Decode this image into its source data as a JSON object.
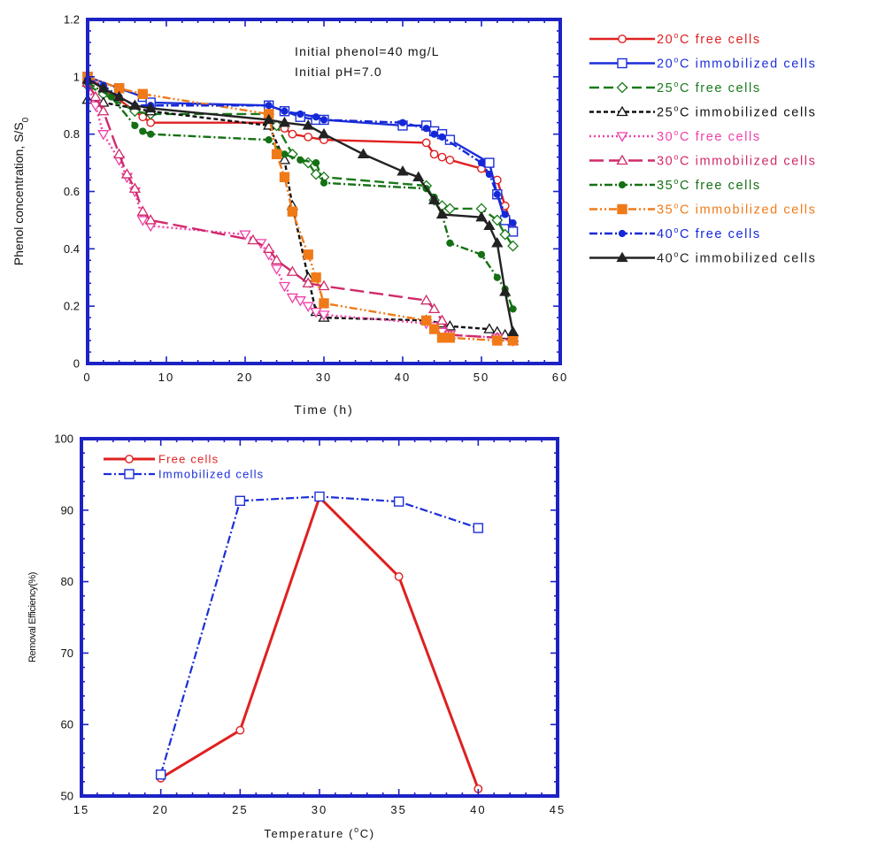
{
  "chart_data": [
    {
      "type": "line",
      "annotation_lines": [
        "Initial phenol=40 mg/L",
        "Initial pH=7.0"
      ],
      "xlabel": "Time (h)",
      "ylabel": "Phenol concentration, S/S",
      "ylabel_sub": "0",
      "xlim": [
        0,
        60
      ],
      "ylim": [
        0,
        1.2
      ],
      "xticks": [
        "0",
        "10",
        "20",
        "30",
        "40",
        "50",
        "60"
      ],
      "yticks": [
        "0",
        "0.2",
        "0.4",
        "0.6",
        "0.8",
        "1",
        "1.2"
      ],
      "legend_position": "right",
      "series": [
        {
          "name": "20°C free cells",
          "temp": "20",
          "label": "C  free cells",
          "color": "#e02020",
          "marker": "circle",
          "dash": "solid",
          "points": [
            [
              0,
              1.0
            ],
            [
              2,
              0.96
            ],
            [
              7,
              0.86
            ],
            [
              8,
              0.84
            ],
            [
              23,
              0.84
            ],
            [
              25,
              0.82
            ],
            [
              26,
              0.8
            ],
            [
              28,
              0.79
            ],
            [
              30,
              0.78
            ],
            [
              43,
              0.77
            ],
            [
              44,
              0.73
            ],
            [
              45,
              0.72
            ],
            [
              46,
              0.71
            ],
            [
              50,
              0.68
            ],
            [
              52,
              0.64
            ],
            [
              53,
              0.55
            ],
            [
              54,
              0.47
            ]
          ]
        },
        {
          "name": "20°C immobilized cells",
          "temp": "20",
          "label": "C  immobilized cells",
          "color": "#1c2fd8",
          "marker": "square",
          "dash": "solid",
          "points": [
            [
              0,
              1.0
            ],
            [
              4,
              0.96
            ],
            [
              7,
              0.93
            ],
            [
              8,
              0.91
            ],
            [
              23,
              0.9
            ],
            [
              25,
              0.88
            ],
            [
              27,
              0.86
            ],
            [
              29,
              0.85
            ],
            [
              30,
              0.85
            ],
            [
              40,
              0.83
            ],
            [
              43,
              0.83
            ],
            [
              44,
              0.81
            ],
            [
              45,
              0.8
            ],
            [
              46,
              0.78
            ],
            [
              51,
              0.7
            ],
            [
              52,
              0.59
            ],
            [
              53,
              0.5
            ],
            [
              54,
              0.46
            ]
          ]
        },
        {
          "name": "25°C free cells",
          "temp": "25",
          "label": "C  free cells",
          "color": "#1a7a1a",
          "marker": "diamond",
          "dash": "dash",
          "points": [
            [
              0,
              0.97
            ],
            [
              2,
              0.94
            ],
            [
              6,
              0.88
            ],
            [
              8,
              0.87
            ],
            [
              23,
              0.87
            ],
            [
              24,
              0.83
            ],
            [
              26,
              0.73
            ],
            [
              28,
              0.7
            ],
            [
              29,
              0.66
            ],
            [
              30,
              0.65
            ],
            [
              43,
              0.62
            ],
            [
              44,
              0.57
            ],
            [
              45,
              0.55
            ],
            [
              46,
              0.54
            ],
            [
              50,
              0.54
            ],
            [
              52,
              0.5
            ],
            [
              53,
              0.45
            ],
            [
              54,
              0.41
            ]
          ]
        },
        {
          "name": "25°C immobilized cells",
          "temp": "25",
          "label": "C  immobilized cells",
          "color": "#111111",
          "marker": "triangle",
          "dash": "shortdash",
          "points": [
            [
              0,
              0.92
            ],
            [
              2,
              0.91
            ],
            [
              8,
              0.88
            ],
            [
              23,
              0.83
            ],
            [
              25,
              0.71
            ],
            [
              26,
              0.55
            ],
            [
              28,
              0.3
            ],
            [
              29,
              0.18
            ],
            [
              30,
              0.16
            ],
            [
              43,
              0.15
            ],
            [
              45,
              0.14
            ],
            [
              46,
              0.13
            ],
            [
              51,
              0.12
            ],
            [
              52,
              0.11
            ],
            [
              53,
              0.1
            ],
            [
              54,
              0.09
            ]
          ]
        },
        {
          "name": "30°C free cells",
          "temp": "30",
          "label": "C  free cells",
          "color": "#f040a8",
          "marker": "invtriangle",
          "dash": "dot",
          "points": [
            [
              0,
              0.97
            ],
            [
              1,
              0.9
            ],
            [
              2,
              0.8
            ],
            [
              4,
              0.71
            ],
            [
              5,
              0.65
            ],
            [
              6,
              0.6
            ],
            [
              7,
              0.5
            ],
            [
              8,
              0.48
            ],
            [
              20,
              0.45
            ],
            [
              22,
              0.42
            ],
            [
              23,
              0.38
            ],
            [
              24,
              0.33
            ],
            [
              25,
              0.27
            ],
            [
              26,
              0.23
            ],
            [
              27,
              0.22
            ],
            [
              28,
              0.2
            ],
            [
              29,
              0.18
            ],
            [
              30,
              0.17
            ],
            [
              43,
              0.14
            ],
            [
              44,
              0.13
            ],
            [
              45,
              0.11
            ],
            [
              46,
              0.1
            ],
            [
              52,
              0.09
            ],
            [
              54,
              0.08
            ]
          ]
        },
        {
          "name": "30°C immobilized cells",
          "temp": "30",
          "label": "C  immobilized cells",
          "color": "#d02a6a",
          "marker": "triangle",
          "dash": "longdash",
          "points": [
            [
              0,
              0.98
            ],
            [
              1,
              0.93
            ],
            [
              2,
              0.88
            ],
            [
              4,
              0.73
            ],
            [
              5,
              0.66
            ],
            [
              6,
              0.61
            ],
            [
              7,
              0.53
            ],
            [
              8,
              0.5
            ],
            [
              21,
              0.43
            ],
            [
              23,
              0.4
            ],
            [
              24,
              0.36
            ],
            [
              26,
              0.32
            ],
            [
              28,
              0.28
            ],
            [
              30,
              0.27
            ],
            [
              43,
              0.22
            ],
            [
              44,
              0.19
            ],
            [
              45,
              0.15
            ],
            [
              46,
              0.1
            ],
            [
              52,
              0.09
            ],
            [
              54,
              0.08
            ]
          ]
        },
        {
          "name": "35°C free cells",
          "temp": "35",
          "label": "C  free cells",
          "color": "#157015",
          "marker": "dot",
          "dash": "dashdot",
          "points": [
            [
              0,
              0.98
            ],
            [
              3,
              0.93
            ],
            [
              6,
              0.83
            ],
            [
              7,
              0.81
            ],
            [
              8,
              0.8
            ],
            [
              23,
              0.78
            ],
            [
              25,
              0.73
            ],
            [
              27,
              0.71
            ],
            [
              29,
              0.7
            ],
            [
              30,
              0.63
            ],
            [
              43,
              0.61
            ],
            [
              44,
              0.58
            ],
            [
              45,
              0.52
            ],
            [
              46,
              0.42
            ],
            [
              50,
              0.38
            ],
            [
              52,
              0.3
            ],
            [
              53,
              0.26
            ],
            [
              54,
              0.19
            ]
          ]
        },
        {
          "name": "35°C immobilized cells",
          "temp": "35",
          "label": "C  immobilized cells",
          "color": "#f07a18",
          "marker": "filledsquare",
          "dash": "dashdotdot",
          "points": [
            [
              0,
              1.0
            ],
            [
              4,
              0.96
            ],
            [
              7,
              0.94
            ],
            [
              23,
              0.87
            ],
            [
              24,
              0.73
            ],
            [
              25,
              0.65
            ],
            [
              26,
              0.53
            ],
            [
              28,
              0.38
            ],
            [
              29,
              0.3
            ],
            [
              30,
              0.21
            ],
            [
              43,
              0.15
            ],
            [
              44,
              0.12
            ],
            [
              45,
              0.09
            ],
            [
              46,
              0.09
            ],
            [
              52,
              0.08
            ],
            [
              54,
              0.08
            ]
          ]
        },
        {
          "name": "40°C free cells",
          "temp": "40",
          "label": "C  free cells",
          "color": "#1528d8",
          "marker": "dot",
          "dash": "dashdot",
          "points": [
            [
              0,
              0.99
            ],
            [
              2,
              0.97
            ],
            [
              4,
              0.93
            ],
            [
              6,
              0.9
            ],
            [
              8,
              0.9
            ],
            [
              23,
              0.9
            ],
            [
              25,
              0.88
            ],
            [
              27,
              0.87
            ],
            [
              29,
              0.86
            ],
            [
              30,
              0.85
            ],
            [
              40,
              0.84
            ],
            [
              43,
              0.82
            ],
            [
              44,
              0.8
            ],
            [
              45,
              0.79
            ],
            [
              50,
              0.7
            ],
            [
              51,
              0.66
            ],
            [
              52,
              0.59
            ],
            [
              53,
              0.52
            ],
            [
              54,
              0.49
            ]
          ]
        },
        {
          "name": "40°C immobilized cells",
          "temp": "40",
          "label": "C  immobilized cells",
          "color": "#222222",
          "marker": "filledtriangle",
          "dash": "solid",
          "points": [
            [
              0,
              0.99
            ],
            [
              2,
              0.96
            ],
            [
              4,
              0.93
            ],
            [
              6,
              0.9
            ],
            [
              8,
              0.89
            ],
            [
              23,
              0.85
            ],
            [
              25,
              0.84
            ],
            [
              28,
              0.83
            ],
            [
              30,
              0.8
            ],
            [
              35,
              0.73
            ],
            [
              40,
              0.67
            ],
            [
              42,
              0.65
            ],
            [
              44,
              0.57
            ],
            [
              45,
              0.52
            ],
            [
              50,
              0.51
            ],
            [
              51,
              0.48
            ],
            [
              52,
              0.42
            ],
            [
              53,
              0.25
            ],
            [
              54,
              0.11
            ]
          ]
        }
      ]
    },
    {
      "type": "line",
      "xlabel": "Temperature (",
      "xlabel_unit": "C)",
      "ylabel": "Removal Efficiency(%)",
      "xlim": [
        15,
        45
      ],
      "ylim": [
        50,
        100
      ],
      "xticks": [
        "15",
        "20",
        "25",
        "30",
        "35",
        "40",
        "45"
      ],
      "yticks": [
        "50",
        "60",
        "70",
        "80",
        "90",
        "100"
      ],
      "legend_position": "top-left",
      "series": [
        {
          "name": "Free cells",
          "color": "#e02020",
          "marker": "circle",
          "dash": "solid",
          "x": [
            20,
            25,
            30,
            35,
            40
          ],
          "values": [
            52.5,
            59.2,
            91.8,
            80.7,
            51.0
          ]
        },
        {
          "name": "Immobilized cells",
          "color": "#1c2fd8",
          "marker": "square",
          "dash": "dashdot",
          "x": [
            20,
            25,
            30,
            35,
            40
          ],
          "values": [
            53.0,
            91.3,
            91.9,
            91.2,
            87.5
          ]
        }
      ]
    }
  ]
}
